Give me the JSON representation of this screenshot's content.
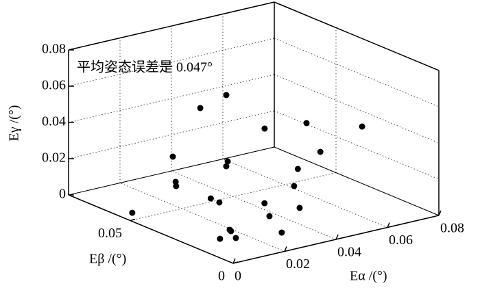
{
  "chart_data": {
    "type": "scatter3d",
    "annotation": "平均姿态误差是 0.047°",
    "x_label": "Eα /(°)",
    "y_label": "Eβ /(°)",
    "z_label": "Eγ /(°)",
    "xlim": [
      0,
      0.08
    ],
    "xticks": [
      0,
      0.02,
      0.04,
      0.06,
      0.08
    ],
    "ylim": [
      0,
      0.08
    ],
    "yticks": [
      0,
      0.05
    ],
    "zlim": [
      0,
      0.08
    ],
    "zticks": [
      0,
      0.02,
      0.04,
      0.06,
      0.08
    ],
    "grid": true,
    "color": "#000000",
    "x": [
      0.0469,
      0.0503,
      0.0452,
      0.0535,
      0.0707,
      0.056,
      0.0359,
      0.0402,
      0.0402,
      0.051,
      0.0258,
      0.0267,
      0.0485,
      0.0225,
      0.0244,
      0.033,
      0.0433,
      0.003,
      0.033,
      0.0149,
      0.0155,
      0.0273,
      0.0093,
      0.0137
    ],
    "y": [
      0.0746,
      0.0662,
      0.0412,
      0.0312,
      0.0257,
      0.0276,
      0.0742,
      0.0529,
      0.0536,
      0.0323,
      0.0602,
      0.0611,
      0.031,
      0.039,
      0.0372,
      0.026,
      0.0218,
      0.0528,
      0.0236,
      0.0203,
      0.0204,
      0.0105,
      0.018,
      0.0158
    ],
    "z": [
      0.035,
      0.045,
      0.04,
      0.045,
      0.04,
      0.03,
      0.012,
      0.018,
      0.015,
      0.02,
      0.008,
      0.005,
      0.012,
      0.01,
      0.008,
      0.01,
      0.006,
      0.002,
      0.004,
      0.004,
      0.003,
      0.003,
      0.002,
      0.002
    ]
  }
}
